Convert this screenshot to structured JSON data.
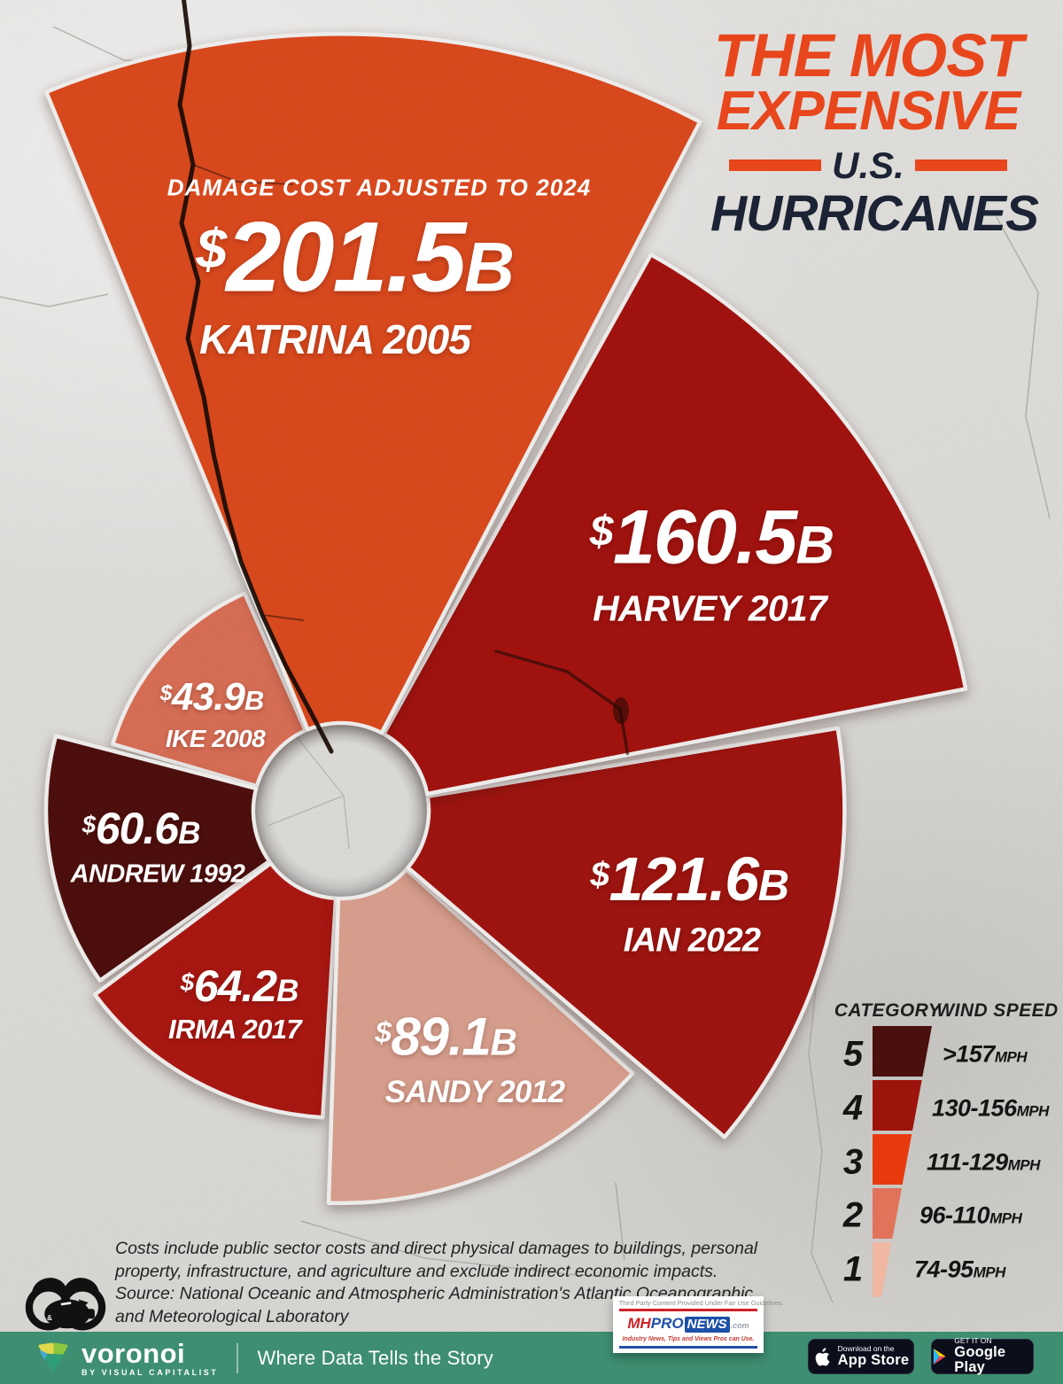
{
  "header": {
    "title_line1": "THE MOST",
    "title_line2": "EXPENSIVE",
    "title_line3": "U.S.",
    "title_line4": "HURRICANES"
  },
  "chart_data": {
    "type": "rose",
    "title": "The Most Expensive U.S. Hurricanes",
    "subtitle": "DAMAGE COST ADJUSTED TO 2024",
    "value_unit": "USD billions, damage cost adjusted to 2024",
    "series": [
      {
        "hurricane": "KATRINA 2005",
        "amount_prefix": "$",
        "amount": "201.5",
        "amount_suffix": "B",
        "value": 201.5,
        "category": 3,
        "color": "#DD4A1E"
      },
      {
        "hurricane": "HARVEY 2017",
        "amount_prefix": "$",
        "amount": "160.5",
        "amount_suffix": "B",
        "value": 160.5,
        "category": 4,
        "color": "#A4130F"
      },
      {
        "hurricane": "IAN 2022",
        "amount_prefix": "$",
        "amount": "121.6",
        "amount_suffix": "B",
        "value": 121.6,
        "category": 4,
        "color": "#A11510"
      },
      {
        "hurricane": "SANDY 2012",
        "amount_prefix": "$",
        "amount": "89.1",
        "amount_suffix": "B",
        "value": 89.1,
        "category": 1,
        "color": "#DBA18F"
      },
      {
        "hurricane": "IRMA 2017",
        "amount_prefix": "$",
        "amount": "64.2",
        "amount_suffix": "B",
        "value": 64.2,
        "category": 4,
        "color": "#AC1812"
      },
      {
        "hurricane": "ANDREW 1992",
        "amount_prefix": "$",
        "amount": "60.6",
        "amount_suffix": "B",
        "value": 60.6,
        "category": 5,
        "color": "#4E0F0E"
      },
      {
        "hurricane": "IKE 2008",
        "amount_prefix": "$",
        "amount": "43.9",
        "amount_suffix": "B",
        "value": 43.9,
        "category": 2,
        "color": "#DB7057"
      }
    ]
  },
  "legend": {
    "category_header": "CATEGORY",
    "wind_header": "WIND SPEED",
    "rows": [
      {
        "category": "5",
        "wind": ">157",
        "unit": "MPH",
        "color": "#4A100E"
      },
      {
        "category": "4",
        "wind": "130-156",
        "unit": "MPH",
        "color": "#9C140C"
      },
      {
        "category": "3",
        "wind": "111-129",
        "unit": "MPH",
        "color": "#E83A0E"
      },
      {
        "category": "2",
        "wind": "96-110",
        "unit": "MPH",
        "color": "#E0735A"
      },
      {
        "category": "1",
        "wind": "74-95",
        "unit": "MPH",
        "color": "#F0B7A3"
      }
    ]
  },
  "footnote": {
    "line1": "Costs include public sector costs and direct physical damages to buildings, personal",
    "line2": "property, infrastructure, and agriculture and exclude indirect economic impacts.",
    "line3": "Source: National Oceanic and Atmospheric Administration's Atlantic Oceanographic",
    "line4": "and Meteorological Laboratory"
  },
  "attribution": {
    "disclaimer": "Third Party Content Provided Under Fair Use Guidelines.",
    "mh": "MH",
    "pro": "PRO",
    "news": "NEWS",
    "com": ".com",
    "tagline": "Industry News, Tips and Views Pros can Use."
  },
  "footer": {
    "brand": "voronoi",
    "brand_sub": "BY VISUAL CAPITALIST",
    "tagline": "Where Data Tells the Story",
    "appstore_line1": "Download on the",
    "appstore_line2": "App Store",
    "gplay_line1": "GET IT ON",
    "gplay_line2": "Google Play"
  },
  "colors": {
    "accent_orange": "#E8461C",
    "navy": "#1B2334",
    "wall": "#E2E1DE",
    "footer_green": "#3E8E71",
    "wedge_stroke": "#F3F2F0"
  }
}
